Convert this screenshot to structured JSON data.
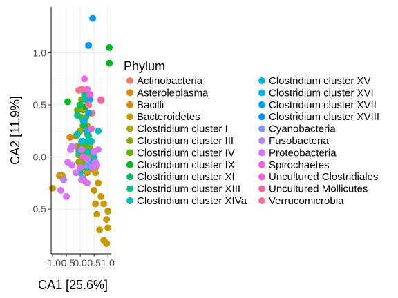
{
  "chart_data": {
    "type": "scatter",
    "title": "",
    "xlabel": "CA1   [25.6%]",
    "ylabel": "CA2   [11.9%]",
    "xlim": [
      -1.05,
      1.12
    ],
    "ylim": [
      -0.93,
      1.44
    ],
    "x_ticks": [
      -1.0,
      -0.5,
      0.0,
      0.5,
      1.0
    ],
    "x_tick_labels": [
      "-1.0",
      "-0.5",
      "0.0",
      "0.5",
      "1.0"
    ],
    "y_ticks": [
      -0.5,
      0.0,
      0.5,
      1.0
    ],
    "y_tick_labels": [
      "-0.5",
      "0.0",
      "0.5",
      "1.0"
    ],
    "grid": true,
    "legend": {
      "title": "Phylum",
      "placement": "right"
    },
    "series": [
      {
        "name": "Actinobacteria",
        "color": "#F8766D",
        "points": [
          [
            -0.05,
            0.64
          ],
          [
            0.75,
            0.54
          ],
          [
            0.42,
            0.42
          ],
          [
            -0.12,
            0.1
          ]
        ]
      },
      {
        "name": "Asteroleplasma",
        "color": "#E58700",
        "points": [
          [
            -0.37,
            0.19
          ]
        ]
      },
      {
        "name": "Bacilli",
        "color": "#D68B00",
        "points": [
          [
            0.38,
            0.0
          ],
          [
            0.12,
            -0.05
          ]
        ]
      },
      {
        "name": "Bacteroidetes",
        "color": "#C99800",
        "points": [
          [
            -1.0,
            -0.3
          ],
          [
            -0.75,
            -0.18
          ],
          [
            -0.65,
            -0.18
          ],
          [
            0.15,
            -0.23
          ],
          [
            0.35,
            -0.12
          ],
          [
            0.55,
            -0.15
          ],
          [
            0.5,
            -0.32
          ],
          [
            0.65,
            -0.25
          ],
          [
            0.75,
            -0.38
          ],
          [
            0.85,
            -0.45
          ],
          [
            1.0,
            -0.52
          ],
          [
            0.55,
            -0.45
          ],
          [
            0.95,
            -0.6
          ],
          [
            0.7,
            -0.7
          ],
          [
            0.6,
            -0.55
          ],
          [
            0.85,
            -0.8
          ],
          [
            1.0,
            -0.68
          ],
          [
            0.95,
            -0.83
          ],
          [
            0.25,
            -0.15
          ],
          [
            0.05,
            -0.02
          ]
        ]
      },
      {
        "name": "Clostridium cluster I",
        "color": "#A3A500",
        "points": [
          [
            0.0,
            0.25
          ],
          [
            0.25,
            0.3
          ],
          [
            0.15,
            0.1
          ],
          [
            0.3,
            0.0
          ],
          [
            -0.05,
            -0.05
          ],
          [
            0.55,
            -0.1
          ],
          [
            0.1,
            0.45
          ]
        ]
      },
      {
        "name": "Clostridium cluster III",
        "color": "#8AAB00",
        "points": [
          [
            -0.15,
            0.2
          ],
          [
            0.1,
            0.3
          ],
          [
            0.05,
            0.55
          ],
          [
            0.25,
            0.22
          ],
          [
            0.35,
            0.1
          ],
          [
            0.1,
            -0.1
          ]
        ]
      },
      {
        "name": "Clostridium cluster IV",
        "color": "#64B200",
        "points": [
          [
            -0.1,
            0.45
          ],
          [
            0.05,
            0.38
          ],
          [
            0.2,
            0.12
          ],
          [
            0.12,
            0.05
          ],
          [
            0.3,
            0.25
          ],
          [
            0.2,
            -0.05
          ],
          [
            0.0,
            0.1
          ],
          [
            0.2,
            0.38
          ],
          [
            0.1,
            0.15
          ],
          [
            -0.05,
            0.02
          ]
        ]
      },
      {
        "name": "Clostridium cluster IX",
        "color": "#00B81F",
        "points": [
          [
            -0.45,
            0.53
          ],
          [
            1.05,
            1.05
          ],
          [
            1.05,
            0.9
          ],
          [
            0.2,
            0.48
          ]
        ]
      },
      {
        "name": "Clostridium cluster XI",
        "color": "#00BD5C",
        "points": [
          [
            0.0,
            0.5
          ],
          [
            0.15,
            0.3
          ]
        ]
      },
      {
        "name": "Clostridium cluster XIII",
        "color": "#00C08B",
        "points": [
          [
            0.15,
            0.6
          ],
          [
            -0.1,
            0.4
          ],
          [
            0.3,
            0.2
          ]
        ]
      },
      {
        "name": "Clostridium cluster XIVa",
        "color": "#00BFB4",
        "points": [
          [
            0.25,
            0.15
          ],
          [
            -0.05,
            0.05
          ],
          [
            0.1,
            0.35
          ],
          [
            0.2,
            0.55
          ],
          [
            0.65,
            0.25
          ],
          [
            0.5,
            0.0
          ],
          [
            -0.1,
            0.22
          ],
          [
            0.25,
            -0.1
          ],
          [
            0.0,
            -0.15
          ],
          [
            0.3,
            0.05
          ],
          [
            0.15,
            0.0
          ],
          [
            0.4,
            0.15
          ]
        ]
      },
      {
        "name": "Clostridium cluster XV",
        "color": "#00BBDA",
        "points": [
          [
            0.05,
            0.15
          ],
          [
            0.35,
            -0.05
          ]
        ]
      },
      {
        "name": "Clostridium cluster XVI",
        "color": "#00B2F3",
        "points": [
          [
            0.25,
            0.25
          ],
          [
            0.15,
            0.35
          ]
        ]
      },
      {
        "name": "Clostridium cluster XVII",
        "color": "#00A5FF",
        "points": [
          [
            0.3,
            0.42
          ],
          [
            0.35,
            0.55
          ]
        ]
      },
      {
        "name": "Clostridium cluster XVIII",
        "color": "#0095FF",
        "points": [
          [
            0.45,
            1.33
          ],
          [
            0.3,
            1.07
          ]
        ]
      },
      {
        "name": "Cyanobacteria",
        "color": "#7F96FF",
        "points": [
          [
            0.25,
            -0.08
          ],
          [
            0.1,
            -0.2
          ]
        ]
      },
      {
        "name": "Fusobacteria",
        "color": "#BB81FF",
        "points": [
          [
            -0.6,
            -0.22
          ],
          [
            -0.3,
            0.1
          ]
        ]
      },
      {
        "name": "Proteobacteria",
        "color": "#DC71FA",
        "points": [
          [
            -0.5,
            -0.38
          ],
          [
            -0.7,
            -0.32
          ],
          [
            -0.45,
            -0.05
          ],
          [
            -0.35,
            0.07
          ],
          [
            0.05,
            0.07
          ],
          [
            0.25,
            -0.02
          ],
          [
            0.5,
            0.05
          ],
          [
            0.65,
            0.07
          ],
          [
            0.0,
            -0.1
          ],
          [
            0.55,
            -0.05
          ],
          [
            0.25,
            -0.25
          ],
          [
            0.45,
            -0.1
          ],
          [
            0.05,
            -0.22
          ],
          [
            -0.3,
            -0.08
          ],
          [
            0.6,
            -0.08
          ],
          [
            -0.15,
            -0.15
          ]
        ]
      },
      {
        "name": "Spirochaetes",
        "color": "#F066EA",
        "points": [
          [
            0.15,
            0.75
          ],
          [
            0.25,
            0.65
          ]
        ]
      },
      {
        "name": "Uncultured Clostridiales",
        "color": "#FB61D7",
        "points": [
          [
            0.05,
            0.65
          ],
          [
            0.35,
            0.6
          ],
          [
            0.4,
            0.27
          ],
          [
            0.1,
            0.0
          ]
        ]
      },
      {
        "name": "Uncultured Mollicutes",
        "color": "#FF65AC",
        "points": [
          [
            0.75,
            0.55
          ]
        ]
      },
      {
        "name": "Verrucomicrobia",
        "color": "#FF6C91",
        "points": [
          [
            0.05,
            0.65
          ],
          [
            0.3,
            0.5
          ]
        ]
      }
    ]
  }
}
